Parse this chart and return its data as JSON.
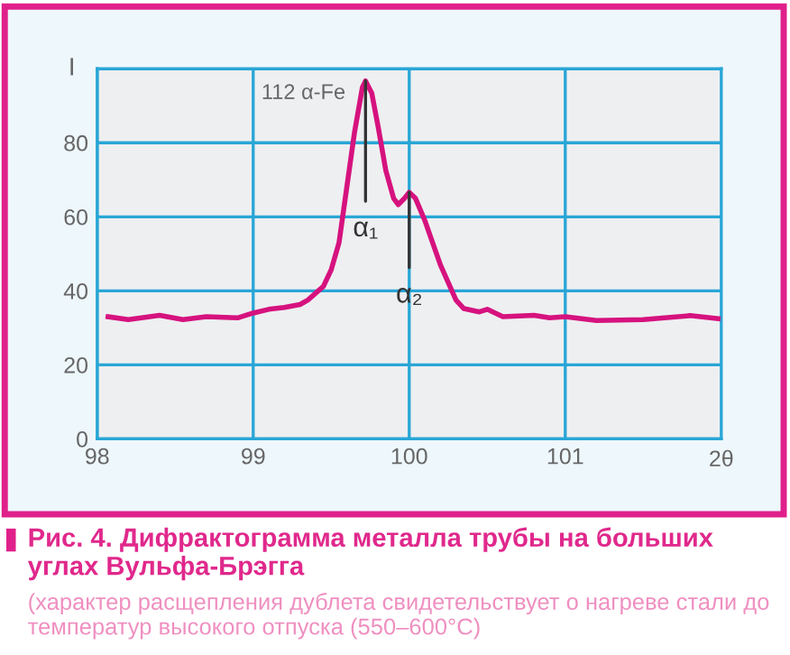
{
  "chart_data": {
    "type": "line",
    "title": "Рис. 4. Дифрактограмма металла трубы на больших углах Вульфа-Брэгга",
    "annotations": [
      "112 α-Fe",
      {
        "text": "α₁",
        "x": 99.72,
        "y": 96.7
      },
      {
        "text": "α₂",
        "x": 100.0,
        "y": 66.6
      },
      "(характер расщепления дублета свидетельствует о нагреве стали до температур высокого отпуска (550–600°С)"
    ],
    "ylabel": "I",
    "series": [
      {
        "color": "#d6127e",
        "x": [
          98.07,
          98.2,
          98.4,
          98.55,
          98.7,
          98.9,
          99.0,
          99.1,
          99.2,
          99.3,
          99.35,
          99.45,
          99.5,
          99.55,
          99.6,
          99.65,
          99.7,
          99.72,
          99.76,
          99.8,
          99.85,
          99.9,
          99.93,
          99.97,
          100.0,
          100.04,
          100.1,
          100.2,
          100.3,
          100.35,
          100.45,
          100.5,
          100.6,
          100.8,
          100.9,
          101.0,
          101.2,
          101.5,
          101.8,
          101.98
        ],
        "values": [
          33.0,
          32.2,
          33.4,
          32.2,
          33.0,
          32.7,
          34.0,
          35.0,
          35.5,
          36.3,
          37.5,
          41.2,
          45.7,
          53.0,
          68.0,
          83.0,
          95.0,
          96.7,
          93.4,
          84.5,
          72.5,
          65.0,
          63.3,
          65.0,
          66.6,
          65.0,
          59.0,
          47.0,
          37.5,
          35.2,
          34.3,
          35.0,
          33.0,
          33.4,
          32.7,
          33.0,
          32.0,
          32.2,
          33.3,
          32.5
        ]
      }
    ],
    "xlabel": "2θ",
    "xlim": [
      98,
      102
    ],
    "xticks": [
      98,
      99,
      100,
      101
    ],
    "ylim": [
      0,
      100
    ],
    "yticks": [
      0,
      20,
      40,
      60,
      80
    ],
    "grid": true,
    "marker": "none",
    "line_style": "solid"
  }
}
